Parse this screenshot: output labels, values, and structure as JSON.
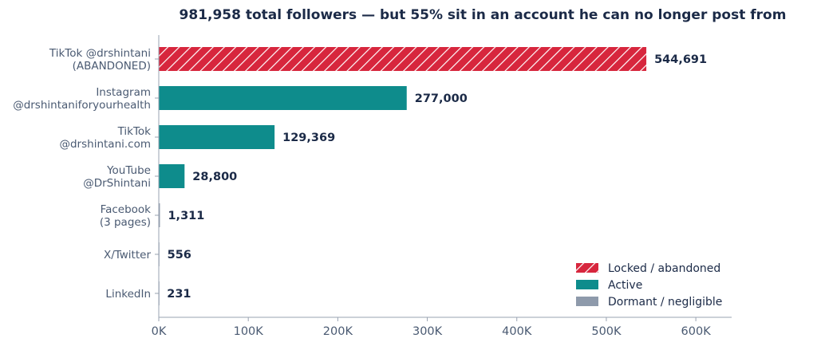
{
  "chart_data": {
    "type": "bar",
    "orientation": "horizontal",
    "title": "981,958 total followers — but 55% sit in an account he can no longer post from",
    "categories": [
      [
        "TikTok @drshintani",
        "(ABANDONED)"
      ],
      [
        "Instagram",
        "@drshintaniforyourhealth"
      ],
      [
        "TikTok",
        "@drshintani.com"
      ],
      [
        "YouTube",
        "@DrShintani"
      ],
      [
        "Facebook",
        "(3 pages)"
      ],
      [
        "X/Twitter"
      ],
      [
        "LinkedIn"
      ]
    ],
    "values": [
      544691,
      277000,
      129369,
      28800,
      1311,
      556,
      231
    ],
    "value_labels": [
      "544,691",
      "277,000",
      "129,369",
      "28,800",
      "1,311",
      "556",
      "231"
    ],
    "status": [
      "locked",
      "active",
      "active",
      "active",
      "dormant",
      "dormant",
      "dormant"
    ],
    "xlim": [
      0,
      640000
    ],
    "xticks": [
      0,
      100000,
      200000,
      300000,
      400000,
      500000,
      600000
    ],
    "xtick_labels": [
      "0K",
      "100K",
      "200K",
      "300K",
      "400K",
      "500K",
      "600K"
    ],
    "legend": {
      "placement": "bottom-right",
      "entries": [
        {
          "key": "locked",
          "label": "Locked / abandoned"
        },
        {
          "key": "active",
          "label": "Active"
        },
        {
          "key": "dormant",
          "label": "Dormant / negligible"
        }
      ]
    },
    "colors": {
      "locked": "#d7263d",
      "active": "#0e8c8c",
      "dormant": "#8e9aab",
      "axis": "#9aa3b2",
      "text": "#1b2a47",
      "label": "#4a5a72"
    },
    "grid": false
  }
}
